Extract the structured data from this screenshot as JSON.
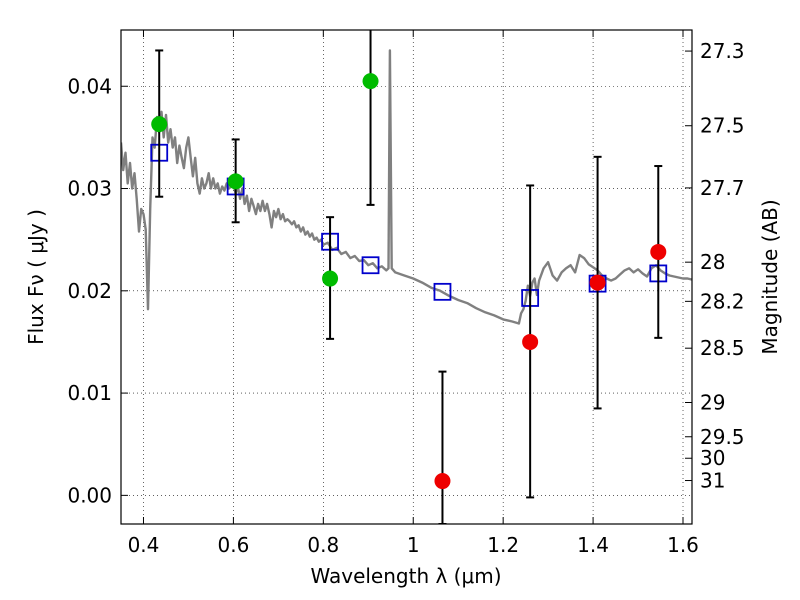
{
  "chart_data": {
    "type": "scatter",
    "xlabel": "Wavelength  λ (μm)",
    "ylabel": "Flux  Fν  ( μJy )",
    "y2label": "Magnitude (AB)",
    "xlim": [
      0.35,
      1.62
    ],
    "ylim": [
      -0.0028,
      0.0455
    ],
    "grid": true,
    "x_ticks": [
      {
        "value": 0.4,
        "label": "0.4"
      },
      {
        "value": 0.6,
        "label": "0.6"
      },
      {
        "value": 0.8,
        "label": "0.8"
      },
      {
        "value": 1.0,
        "label": "1"
      },
      {
        "value": 1.2,
        "label": "1.2"
      },
      {
        "value": 1.4,
        "label": "1.4"
      },
      {
        "value": 1.6,
        "label": "1.6"
      }
    ],
    "y_ticks": [
      {
        "value": 0.0,
        "label": "0.00"
      },
      {
        "value": 0.01,
        "label": "0.01"
      },
      {
        "value": 0.02,
        "label": "0.02"
      },
      {
        "value": 0.03,
        "label": "0.03"
      },
      {
        "value": 0.04,
        "label": "0.04"
      }
    ],
    "mag_ticks": [
      {
        "label": "27.3",
        "flux": 0.04344
      },
      {
        "label": "27.5",
        "flux": 0.03614
      },
      {
        "label": "27.7",
        "flux": 0.03006
      },
      {
        "label": "28",
        "flux": 0.0228
      },
      {
        "label": "28.2",
        "flux": 0.01897
      },
      {
        "label": "28.5",
        "flux": 0.01439
      },
      {
        "label": "29",
        "flux": 0.00908
      },
      {
        "label": "29.5",
        "flux": 0.00573
      },
      {
        "label": "30",
        "flux": 0.00363
      },
      {
        "label": "31",
        "flux": 0.00145
      }
    ],
    "series": [
      {
        "color": "#808080",
        "kind": "template_spectrum",
        "points": [
          [
            0.35,
            0.0345
          ],
          [
            0.355,
            0.0318
          ],
          [
            0.36,
            0.0335
          ],
          [
            0.365,
            0.0305
          ],
          [
            0.37,
            0.0325
          ],
          [
            0.375,
            0.03
          ],
          [
            0.38,
            0.0315
          ],
          [
            0.385,
            0.029
          ],
          [
            0.39,
            0.0258
          ],
          [
            0.395,
            0.028
          ],
          [
            0.4,
            0.0275
          ],
          [
            0.405,
            0.026
          ],
          [
            0.41,
            0.0182
          ],
          [
            0.415,
            0.028
          ],
          [
            0.42,
            0.035
          ],
          [
            0.425,
            0.034
          ],
          [
            0.43,
            0.037
          ],
          [
            0.435,
            0.0355
          ],
          [
            0.44,
            0.0375
          ],
          [
            0.445,
            0.035
          ],
          [
            0.45,
            0.0372
          ],
          [
            0.455,
            0.0345
          ],
          [
            0.46,
            0.0358
          ],
          [
            0.465,
            0.034
          ],
          [
            0.47,
            0.035
          ],
          [
            0.475,
            0.0325
          ],
          [
            0.48,
            0.0342
          ],
          [
            0.485,
            0.033
          ],
          [
            0.49,
            0.032
          ],
          [
            0.495,
            0.034
          ],
          [
            0.5,
            0.035
          ],
          [
            0.505,
            0.033
          ],
          [
            0.51,
            0.0312
          ],
          [
            0.515,
            0.033
          ],
          [
            0.52,
            0.0305
          ],
          [
            0.525,
            0.0295
          ],
          [
            0.53,
            0.031
          ],
          [
            0.535,
            0.03
          ],
          [
            0.54,
            0.0305
          ],
          [
            0.545,
            0.0315
          ],
          [
            0.55,
            0.03
          ],
          [
            0.555,
            0.031
          ],
          [
            0.56,
            0.03
          ],
          [
            0.565,
            0.0305
          ],
          [
            0.57,
            0.0295
          ],
          [
            0.575,
            0.0302
          ],
          [
            0.58,
            0.0298
          ],
          [
            0.585,
            0.0305
          ],
          [
            0.59,
            0.03
          ],
          [
            0.595,
            0.0302
          ],
          [
            0.6,
            0.0305
          ],
          [
            0.605,
            0.0295
          ],
          [
            0.61,
            0.0302
          ],
          [
            0.615,
            0.029
          ],
          [
            0.62,
            0.03
          ],
          [
            0.625,
            0.0285
          ],
          [
            0.63,
            0.0293
          ],
          [
            0.635,
            0.0278
          ],
          [
            0.64,
            0.029
          ],
          [
            0.645,
            0.0283
          ],
          [
            0.65,
            0.0275
          ],
          [
            0.655,
            0.0285
          ],
          [
            0.66,
            0.0278
          ],
          [
            0.665,
            0.0288
          ],
          [
            0.67,
            0.0278
          ],
          [
            0.675,
            0.0285
          ],
          [
            0.68,
            0.0275
          ],
          [
            0.685,
            0.0262
          ],
          [
            0.69,
            0.0278
          ],
          [
            0.695,
            0.0272
          ],
          [
            0.7,
            0.028
          ],
          [
            0.705,
            0.027
          ],
          [
            0.71,
            0.0275
          ],
          [
            0.715,
            0.0268
          ],
          [
            0.72,
            0.027
          ],
          [
            0.725,
            0.0268
          ],
          [
            0.73,
            0.0265
          ],
          [
            0.735,
            0.0268
          ],
          [
            0.74,
            0.0262
          ],
          [
            0.745,
            0.0264
          ],
          [
            0.75,
            0.0258
          ],
          [
            0.755,
            0.0262
          ],
          [
            0.76,
            0.0255
          ],
          [
            0.765,
            0.0258
          ],
          [
            0.77,
            0.0253
          ],
          [
            0.775,
            0.0256
          ],
          [
            0.78,
            0.025
          ],
          [
            0.785,
            0.0252
          ],
          [
            0.79,
            0.0248
          ],
          [
            0.795,
            0.025
          ],
          [
            0.8,
            0.0245
          ],
          [
            0.81,
            0.0247
          ],
          [
            0.82,
            0.024
          ],
          [
            0.83,
            0.0242
          ],
          [
            0.84,
            0.0236
          ],
          [
            0.85,
            0.0238
          ],
          [
            0.86,
            0.0232
          ],
          [
            0.87,
            0.0234
          ],
          [
            0.88,
            0.0229
          ],
          [
            0.89,
            0.023
          ],
          [
            0.9,
            0.0225
          ],
          [
            0.91,
            0.0227
          ],
          [
            0.92,
            0.0222
          ],
          [
            0.93,
            0.0224
          ],
          [
            0.94,
            0.022
          ],
          [
            0.945,
            0.0222
          ],
          [
            0.948,
            0.0435
          ],
          [
            0.952,
            0.0222
          ],
          [
            0.96,
            0.0218
          ],
          [
            0.98,
            0.0215
          ],
          [
            1.0,
            0.0212
          ],
          [
            1.02,
            0.0208
          ],
          [
            1.04,
            0.0203
          ],
          [
            1.06,
            0.02
          ],
          [
            1.08,
            0.0195
          ],
          [
            1.1,
            0.0191
          ],
          [
            1.12,
            0.0188
          ],
          [
            1.14,
            0.0183
          ],
          [
            1.16,
            0.0179
          ],
          [
            1.18,
            0.0176
          ],
          [
            1.2,
            0.0172
          ],
          [
            1.22,
            0.017
          ],
          [
            1.235,
            0.0168
          ],
          [
            1.24,
            0.0178
          ],
          [
            1.245,
            0.0182
          ],
          [
            1.25,
            0.019
          ],
          [
            1.255,
            0.0205
          ],
          [
            1.26,
            0.0195
          ],
          [
            1.265,
            0.0208
          ],
          [
            1.27,
            0.0212
          ],
          [
            1.275,
            0.0196
          ],
          [
            1.28,
            0.021
          ],
          [
            1.29,
            0.0222
          ],
          [
            1.3,
            0.0228
          ],
          [
            1.31,
            0.0215
          ],
          [
            1.32,
            0.021
          ],
          [
            1.33,
            0.0218
          ],
          [
            1.34,
            0.0222
          ],
          [
            1.35,
            0.0225
          ],
          [
            1.36,
            0.0218
          ],
          [
            1.37,
            0.0235
          ],
          [
            1.38,
            0.0232
          ],
          [
            1.39,
            0.0226
          ],
          [
            1.4,
            0.0223
          ],
          [
            1.41,
            0.022
          ],
          [
            1.42,
            0.0215
          ],
          [
            1.43,
            0.0212
          ],
          [
            1.44,
            0.021
          ],
          [
            1.45,
            0.0212
          ],
          [
            1.46,
            0.0216
          ],
          [
            1.47,
            0.022
          ],
          [
            1.48,
            0.0222
          ],
          [
            1.49,
            0.0218
          ],
          [
            1.5,
            0.0221
          ],
          [
            1.51,
            0.0217
          ],
          [
            1.52,
            0.0214
          ],
          [
            1.53,
            0.0222
          ],
          [
            1.54,
            0.0225
          ],
          [
            1.55,
            0.022
          ],
          [
            1.56,
            0.0217
          ],
          [
            1.57,
            0.0215
          ],
          [
            1.58,
            0.0214
          ],
          [
            1.59,
            0.0213
          ],
          [
            1.6,
            0.0212
          ],
          [
            1.61,
            0.0212
          ],
          [
            1.62,
            0.0211
          ]
        ]
      },
      {
        "color": "#0000cc",
        "kind": "open_square",
        "points": [
          [
            0.435,
            0.0335
          ],
          [
            0.605,
            0.0302
          ],
          [
            0.815,
            0.0248
          ],
          [
            0.905,
            0.0225
          ],
          [
            1.065,
            0.0199
          ],
          [
            1.26,
            0.0193
          ],
          [
            1.41,
            0.0207
          ],
          [
            1.545,
            0.0217
          ]
        ]
      },
      {
        "color": "#00bb00",
        "kind": "filled_circle",
        "points": [
          {
            "x": 0.435,
            "y": 0.0363,
            "lo": 0.0292,
            "hi": 0.0435
          },
          {
            "x": 0.605,
            "y": 0.0307,
            "lo": 0.0267,
            "hi": 0.0348
          },
          {
            "x": 0.815,
            "y": 0.0212,
            "lo": 0.0153,
            "hi": 0.0272
          },
          {
            "x": 0.905,
            "y": 0.0405,
            "lo": 0.0284,
            "hi": 0.0456
          }
        ]
      },
      {
        "color": "#ee0000",
        "kind": "filled_circle",
        "points": [
          {
            "x": 1.065,
            "y": 0.0014,
            "lo": -0.0028,
            "hi": 0.0121
          },
          {
            "x": 1.26,
            "y": 0.015,
            "lo": -0.0002,
            "hi": 0.0303
          },
          {
            "x": 1.41,
            "y": 0.0208,
            "lo": 0.0085,
            "hi": 0.0331
          },
          {
            "x": 1.545,
            "y": 0.0238,
            "lo": 0.0154,
            "hi": 0.0322
          }
        ]
      }
    ]
  }
}
